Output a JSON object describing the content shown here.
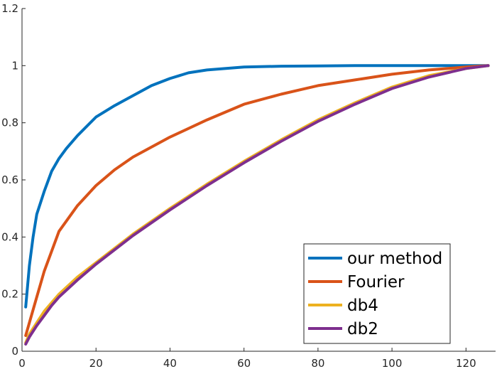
{
  "chart_data": {
    "type": "line",
    "title": "",
    "xlabel": "",
    "ylabel": "",
    "xlim": [
      0,
      128
    ],
    "ylim": [
      0,
      1.2
    ],
    "xticks": [
      0,
      20,
      40,
      60,
      80,
      100,
      120
    ],
    "yticks": [
      0,
      0.2,
      0.4,
      0.6,
      0.8,
      1,
      1.2
    ],
    "xtick_labels": [
      "0",
      "20",
      "40",
      "60",
      "80",
      "100",
      "120"
    ],
    "ytick_labels": [
      "0",
      "0.2",
      "0.4",
      "0.6",
      "0.8",
      "1",
      "1.2"
    ],
    "grid": false,
    "legend_position": "bottom-right",
    "series": [
      {
        "name": "our method",
        "color": "#0072BD",
        "x": [
          1,
          2,
          3,
          4,
          6,
          8,
          10,
          12,
          15,
          20,
          25,
          30,
          35,
          40,
          45,
          50,
          60,
          70,
          80,
          90,
          100,
          110,
          126
        ],
        "y": [
          0.155,
          0.3,
          0.4,
          0.48,
          0.56,
          0.63,
          0.675,
          0.71,
          0.755,
          0.82,
          0.86,
          0.895,
          0.93,
          0.955,
          0.975,
          0.985,
          0.995,
          0.998,
          0.999,
          1.0,
          1.0,
          1.0,
          1.0
        ]
      },
      {
        "name": "Fourier",
        "color": "#D95319",
        "x": [
          1,
          2,
          4,
          6,
          8,
          10,
          15,
          20,
          25,
          30,
          40,
          50,
          60,
          70,
          80,
          90,
          100,
          110,
          120,
          126
        ],
        "y": [
          0.055,
          0.1,
          0.19,
          0.28,
          0.35,
          0.42,
          0.51,
          0.58,
          0.635,
          0.68,
          0.75,
          0.81,
          0.865,
          0.9,
          0.93,
          0.95,
          0.97,
          0.985,
          0.995,
          1.0
        ]
      },
      {
        "name": "db4",
        "color": "#EDB120",
        "x": [
          1,
          2,
          4,
          6,
          8,
          10,
          15,
          20,
          30,
          40,
          50,
          60,
          70,
          80,
          90,
          100,
          110,
          120,
          126
        ],
        "y": [
          0.03,
          0.06,
          0.1,
          0.14,
          0.17,
          0.2,
          0.26,
          0.31,
          0.41,
          0.5,
          0.585,
          0.665,
          0.74,
          0.81,
          0.87,
          0.925,
          0.965,
          0.99,
          1.0
        ]
      },
      {
        "name": "db2",
        "color": "#7E2F8E",
        "x": [
          1,
          2,
          4,
          6,
          8,
          10,
          15,
          20,
          30,
          40,
          50,
          60,
          70,
          80,
          90,
          100,
          110,
          120,
          126
        ],
        "y": [
          0.025,
          0.05,
          0.09,
          0.125,
          0.16,
          0.19,
          0.25,
          0.305,
          0.405,
          0.495,
          0.58,
          0.66,
          0.735,
          0.805,
          0.865,
          0.92,
          0.96,
          0.99,
          1.0
        ]
      }
    ]
  }
}
